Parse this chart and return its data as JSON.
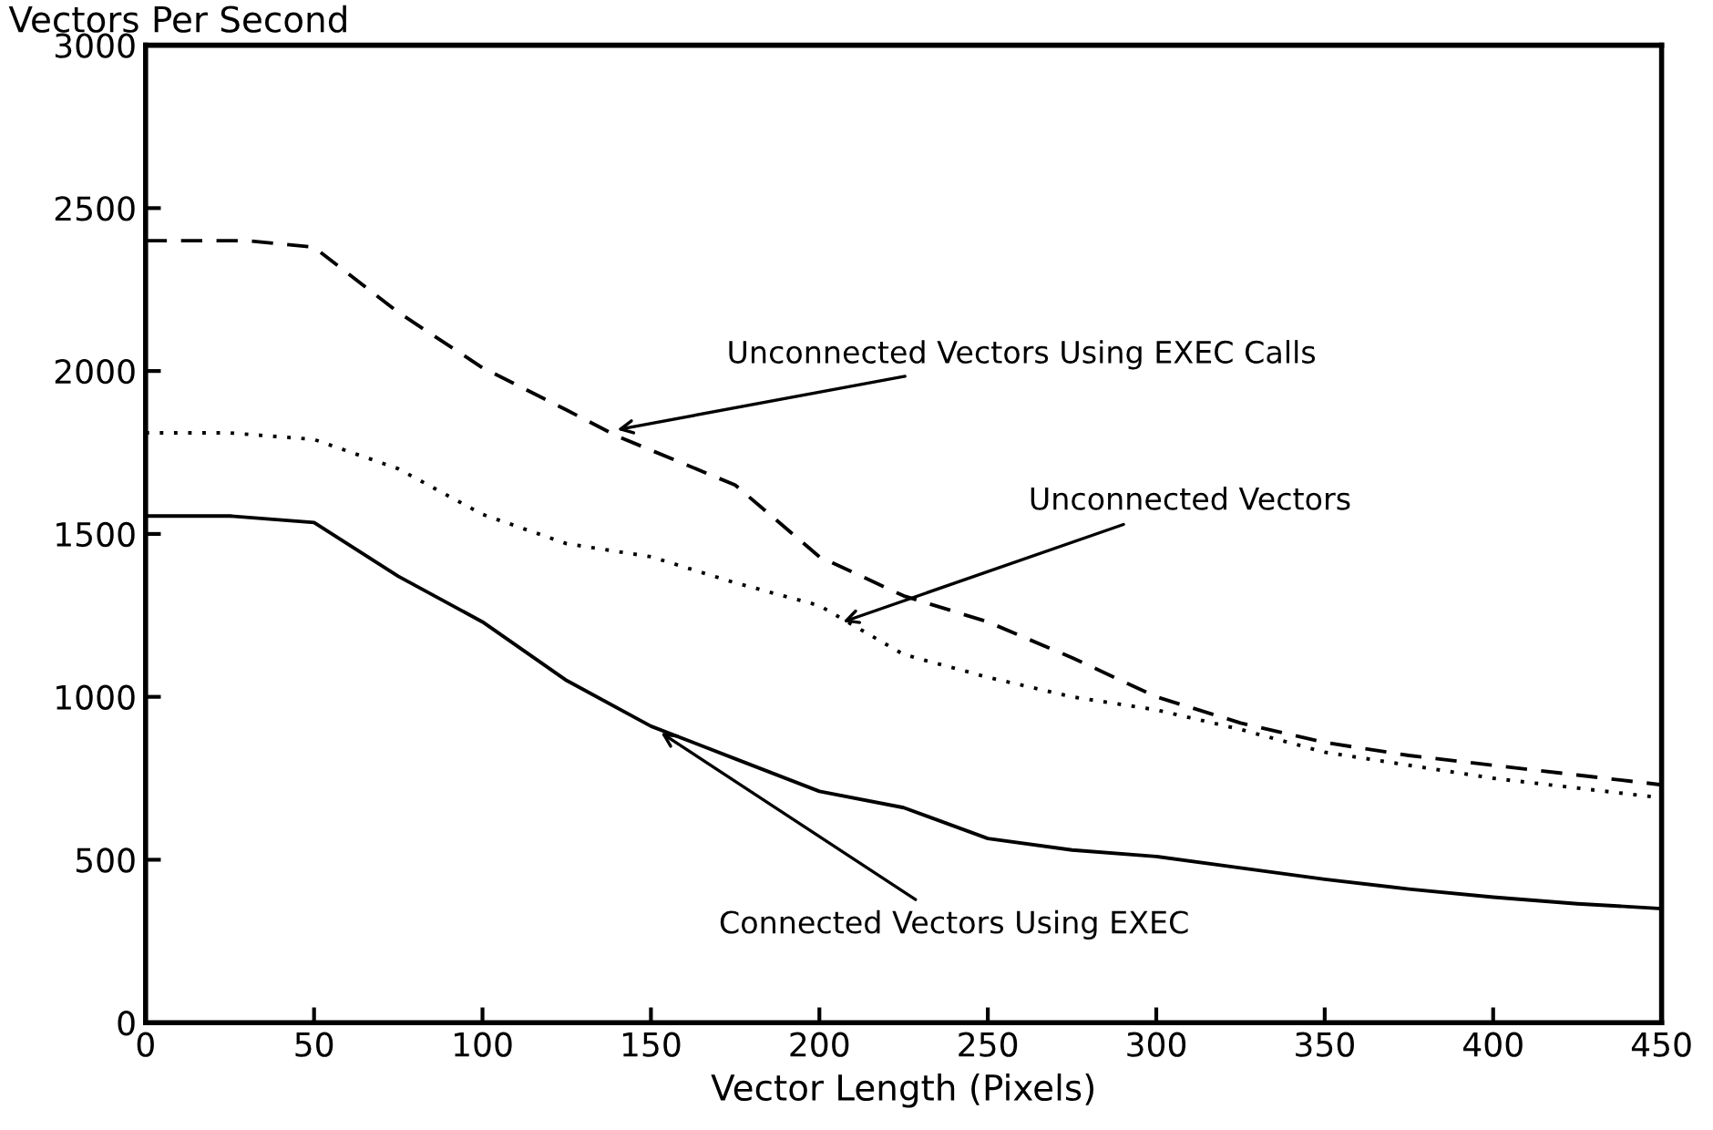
{
  "chart_data": {
    "type": "line",
    "ylabel": "Vectors Per Second",
    "xlabel": "Vector Length (Pixels)",
    "xlim": [
      0,
      450
    ],
    "ylim": [
      0,
      3000
    ],
    "xticks": [
      0,
      50,
      100,
      150,
      200,
      250,
      300,
      350,
      400,
      450
    ],
    "yticks": [
      0,
      500,
      1000,
      1500,
      2000,
      2500,
      3000
    ],
    "grid": false,
    "legend": false,
    "marker": "none",
    "series": [
      {
        "color": "#000000",
        "line_style": "dashed",
        "x": [
          0,
          30,
          50,
          75,
          100,
          125,
          140,
          175,
          200,
          225,
          250,
          275,
          300,
          325,
          350,
          375,
          400,
          425,
          450
        ],
        "values": [
          2400,
          2400,
          2380,
          2180,
          2010,
          1880,
          1800,
          1650,
          1430,
          1310,
          1230,
          1120,
          1000,
          920,
          860,
          820,
          790,
          760,
          730
        ]
      },
      {
        "color": "#000000",
        "line_style": "dotted",
        "x": [
          0,
          25,
          50,
          75,
          100,
          125,
          150,
          175,
          200,
          225,
          250,
          275,
          300,
          325,
          350,
          375,
          400,
          425,
          450
        ],
        "values": [
          1810,
          1810,
          1790,
          1700,
          1560,
          1470,
          1430,
          1350,
          1280,
          1130,
          1060,
          1000,
          960,
          900,
          830,
          790,
          750,
          720,
          690
        ]
      },
      {
        "color": "#000000",
        "line_style": "solid",
        "x": [
          0,
          25,
          50,
          75,
          100,
          125,
          150,
          175,
          200,
          225,
          250,
          275,
          300,
          325,
          350,
          375,
          400,
          425,
          450
        ],
        "values": [
          1555,
          1555,
          1535,
          1370,
          1230,
          1050,
          910,
          810,
          710,
          660,
          565,
          530,
          510,
          475,
          440,
          410,
          385,
          365,
          350
        ]
      }
    ],
    "annotations": [
      {
        "text": "Unconnected Vectors Using EXEC Calls",
        "x": 140,
        "y": 1820
      },
      {
        "text": "Unconnected Vectors",
        "x": 207,
        "y": 1230
      },
      {
        "text": "Connected Vectors Using EXEC",
        "x": 153,
        "y": 890
      }
    ]
  }
}
